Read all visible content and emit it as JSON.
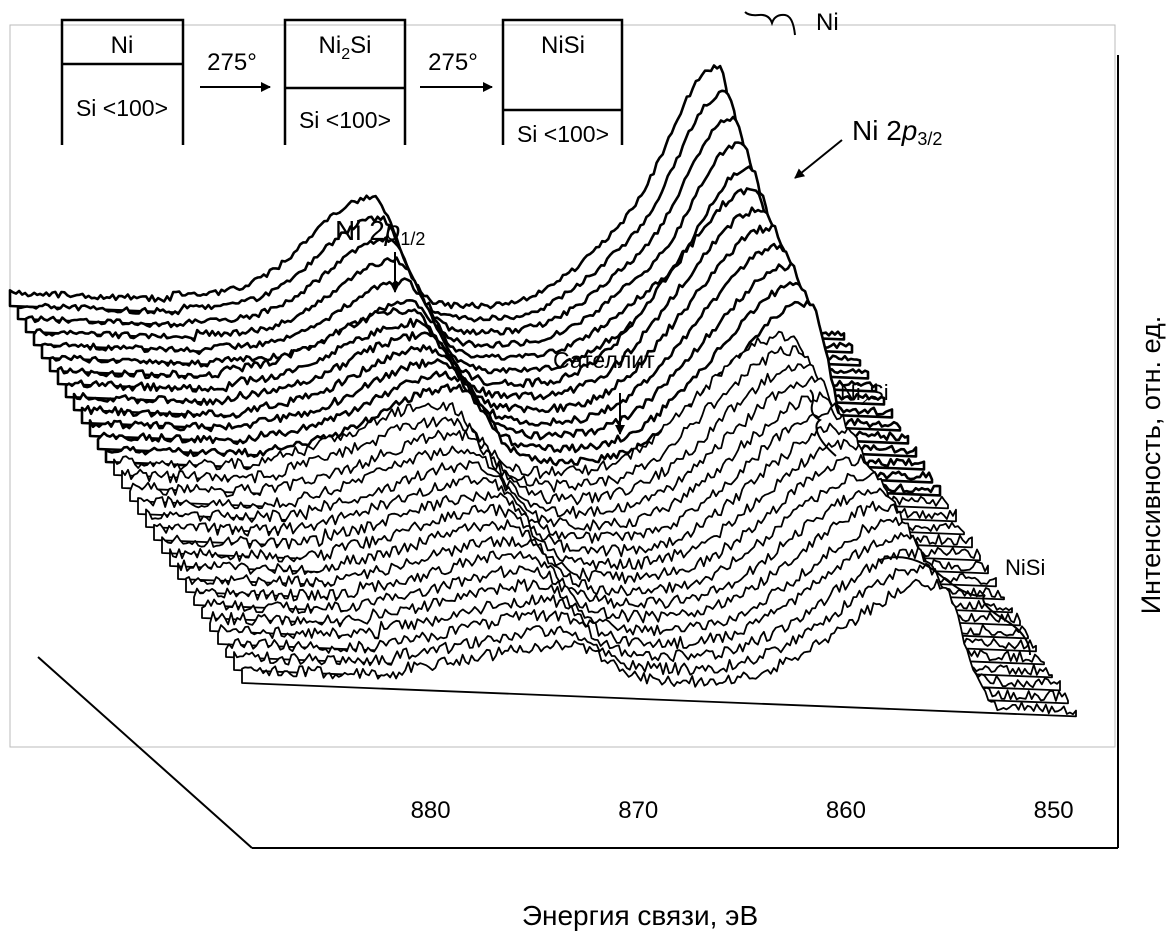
{
  "chart_data": {
    "type": "waterfall",
    "xlabel": "Энергия связи, эВ",
    "ylabel": "Интенсивность, отн. ед.",
    "xlim": [
      888.6,
      846.9
    ],
    "xticks": [
      880,
      870,
      860,
      850
    ],
    "scheme": [
      {
        "top": "Ni",
        "bottom": "Si <100>"
      },
      {
        "top": [
          "Ni",
          "2",
          "Si"
        ],
        "bottom": "Si <100>"
      },
      {
        "top": "NiSi",
        "bottom": "Si <100>"
      }
    ],
    "steps": [
      "275°",
      "275°"
    ],
    "annotations": {
      "p12": [
        "Ni 2",
        "p",
        "1/2"
      ],
      "p32": [
        "Ni 2",
        "p",
        "3/2"
      ],
      "satellite": "Сателлит",
      "ni": "Ni",
      "ni2si": [
        "Ni",
        "2",
        "Si"
      ],
      "nisi": "NiSi"
    }
  }
}
